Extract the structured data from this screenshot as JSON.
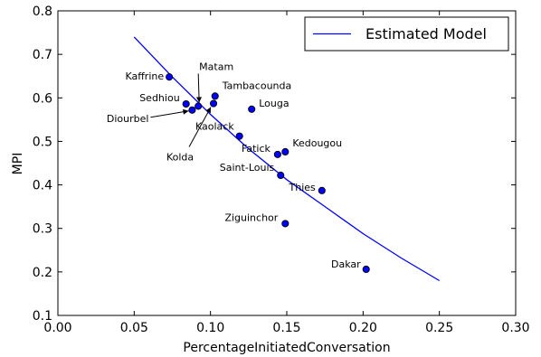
{
  "chart_data": {
    "type": "scatter",
    "xlabel": "PercentageInitiatedConversation",
    "ylabel": "MPI",
    "xlim": [
      0.0,
      0.3
    ],
    "ylim": [
      0.1,
      0.8
    ],
    "xticks": [
      "0.00",
      "0.05",
      "0.10",
      "0.15",
      "0.20",
      "0.25",
      "0.30"
    ],
    "yticks": [
      "0.1",
      "0.2",
      "0.3",
      "0.4",
      "0.5",
      "0.6",
      "0.7",
      "0.8"
    ],
    "grid": false,
    "legend_position": "top-right",
    "colors": {
      "points": "#0000ff",
      "point_edge": "#000000",
      "line": "#0000ff"
    },
    "points": [
      {
        "label": "Kaffrine",
        "x": 0.073,
        "y": 0.648
      },
      {
        "label": "Sedhiou",
        "x": 0.084,
        "y": 0.586
      },
      {
        "label": "Matam",
        "x": 0.092,
        "y": 0.581
      },
      {
        "label": "Diourbel",
        "x": 0.088,
        "y": 0.572
      },
      {
        "label": "Kolda",
        "x": 0.102,
        "y": 0.587
      },
      {
        "label": "Tambacounda",
        "x": 0.103,
        "y": 0.604
      },
      {
        "label": "Louga",
        "x": 0.127,
        "y": 0.574
      },
      {
        "label": "Kaolack",
        "x": 0.119,
        "y": 0.512
      },
      {
        "label": "Fatick",
        "x": 0.144,
        "y": 0.47
      },
      {
        "label": "Kedougou",
        "x": 0.149,
        "y": 0.476
      },
      {
        "label": "Saint-Louis",
        "x": 0.146,
        "y": 0.422
      },
      {
        "label": "Thies",
        "x": 0.173,
        "y": 0.387
      },
      {
        "label": "Ziguinchor",
        "x": 0.149,
        "y": 0.311
      },
      {
        "label": "Dakar",
        "x": 0.202,
        "y": 0.206
      }
    ],
    "series": [
      {
        "name": "Estimated Model",
        "x": [
          0.05,
          0.075,
          0.1,
          0.125,
          0.15,
          0.175,
          0.2,
          0.225,
          0.25
        ],
        "y": [
          0.74,
          0.648,
          0.562,
          0.483,
          0.412,
          0.35,
          0.288,
          0.232,
          0.18
        ]
      }
    ]
  }
}
